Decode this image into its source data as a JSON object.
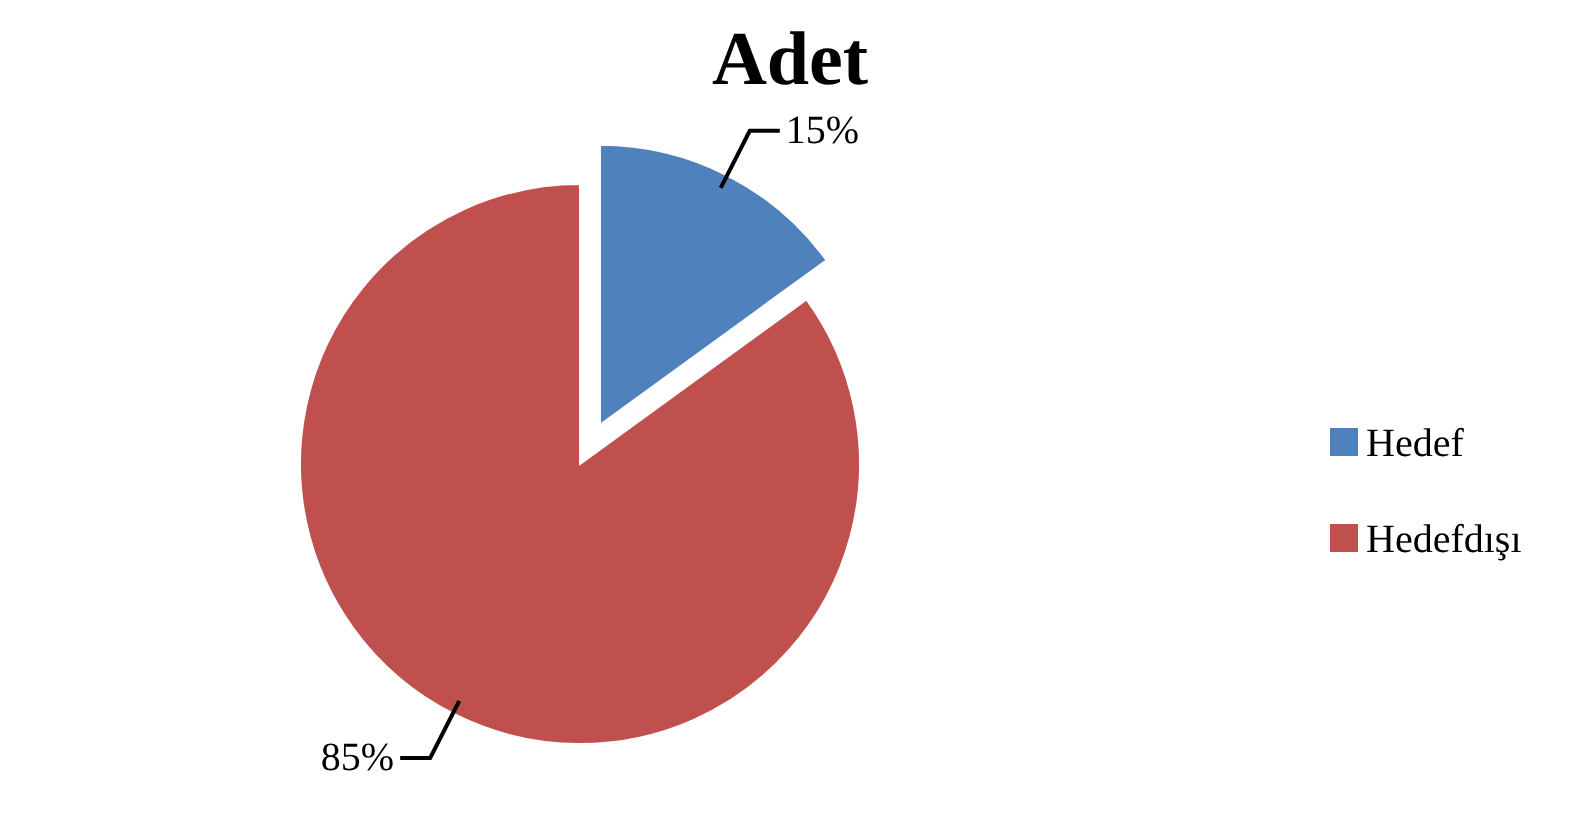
{
  "chart_data": {
    "type": "pie",
    "title": "Adet",
    "categories": [
      "Hedef",
      "Hedefdışı"
    ],
    "values": [
      15,
      85
    ],
    "colors": [
      "#4f81bd",
      "#c0504d"
    ],
    "value_labels": [
      "15%",
      "85%"
    ],
    "legend": "right"
  }
}
